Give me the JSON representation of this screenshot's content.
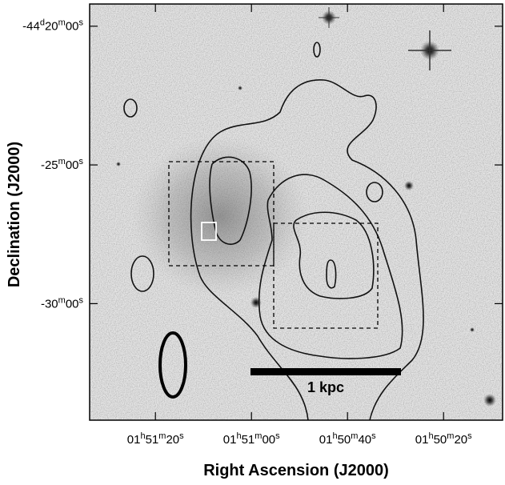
{
  "chart_data": {
    "type": "image",
    "xlabel": "Right Ascension (J2000)",
    "ylabel": "Declination (J2000)",
    "xlim": [
      6693.7,
      6607.7
    ],
    "xticks": [
      {
        "value": 6680,
        "label": "01h51m20s"
      },
      {
        "value": 6660,
        "label": "01h51m00s"
      },
      {
        "value": 6640,
        "label": "01h50m40s"
      },
      {
        "value": 6620,
        "label": "01h50m20s"
      }
    ],
    "ylim": [
      -2674.2,
      -2659.2
    ],
    "yticks": [
      {
        "value": -2660,
        "label": "-44d20m00s"
      },
      {
        "value": -2665,
        "label": "-25m00s"
      },
      {
        "value": -2670,
        "label": "-30m00s"
      }
    ],
    "annotation": "1 kpc"
  }
}
